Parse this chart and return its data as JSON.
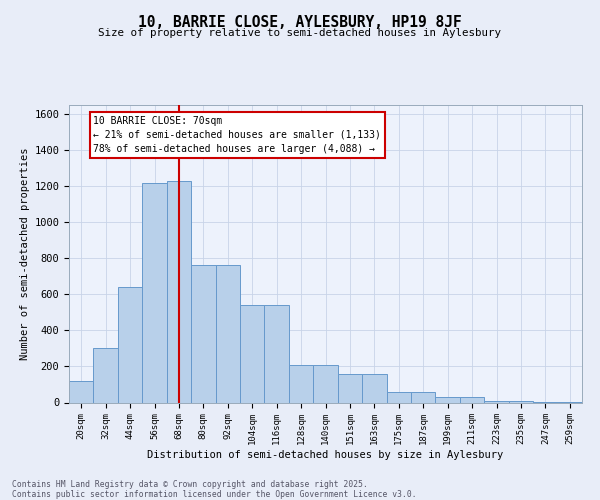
{
  "title1": "10, BARRIE CLOSE, AYLESBURY, HP19 8JF",
  "title2": "Size of property relative to semi-detached houses in Aylesbury",
  "xlabel": "Distribution of semi-detached houses by size in Aylesbury",
  "ylabel": "Number of semi-detached properties",
  "categories": [
    "20sqm",
    "32sqm",
    "44sqm",
    "56sqm",
    "68sqm",
    "80sqm",
    "92sqm",
    "104sqm",
    "116sqm",
    "128sqm",
    "140sqm",
    "151sqm",
    "163sqm",
    "175sqm",
    "187sqm",
    "199sqm",
    "211sqm",
    "223sqm",
    "235sqm",
    "247sqm",
    "259sqm"
  ],
  "values": [
    120,
    300,
    640,
    1220,
    1230,
    760,
    760,
    540,
    540,
    210,
    210,
    160,
    160,
    60,
    60,
    30,
    30,
    10,
    10,
    3,
    3
  ],
  "bar_color": "#b8d0ea",
  "bar_edge_color": "#6699cc",
  "vline_pos": 4.5,
  "vline_color": "#cc0000",
  "ann_line1": "10 BARRIE CLOSE: 70sqm",
  "ann_line2": "← 21% of semi-detached houses are smaller (1,133)",
  "ann_line3": "78% of semi-detached houses are larger (4,088) →",
  "ylim": [
    0,
    1650
  ],
  "yticks": [
    0,
    200,
    400,
    600,
    800,
    1000,
    1200,
    1400,
    1600
  ],
  "footer": "Contains HM Land Registry data © Crown copyright and database right 2025.\nContains public sector information licensed under the Open Government Licence v3.0.",
  "bg_color": "#e8edf8",
  "plot_bg_color": "#edf2fc",
  "grid_color": "#c8d4e8"
}
